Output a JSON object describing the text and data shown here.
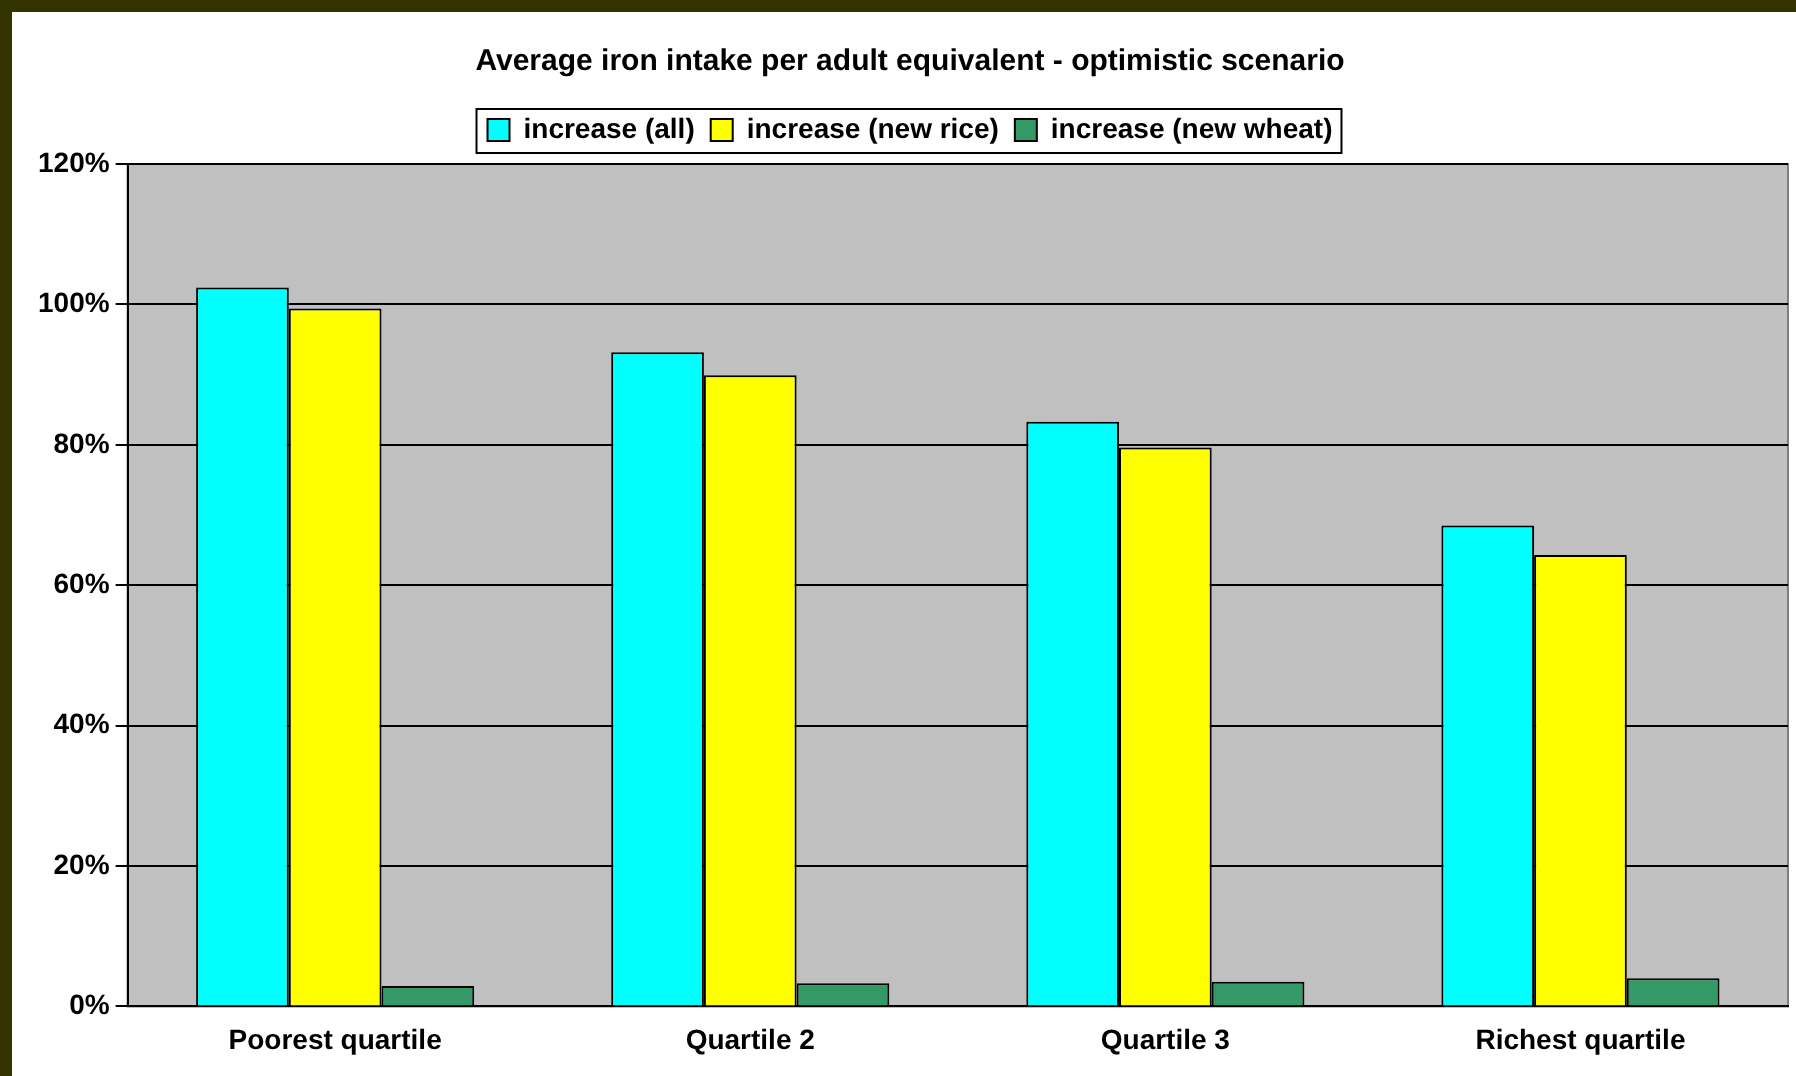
{
  "chart_data": {
    "type": "bar",
    "title": "Average iron intake per adult equivalent - optimistic scenario",
    "categories": [
      "Poorest quartile",
      "Quartile 2",
      "Quartile 3",
      "Richest quartile"
    ],
    "series": [
      {
        "name": "increase (all)",
        "color": "#00ffff",
        "values": [
          102.4,
          93.2,
          83.3,
          68.5
        ]
      },
      {
        "name": "increase (new rice)",
        "color": "#ffff00",
        "values": [
          99.4,
          89.9,
          79.6,
          64.3
        ]
      },
      {
        "name": "increase (new wheat)",
        "color": "#339966",
        "values": [
          2.9,
          3.3,
          3.5,
          4.0
        ]
      }
    ],
    "ylim": [
      0,
      120
    ],
    "yticks": [
      {
        "value": 0,
        "label": "0%"
      },
      {
        "value": 20,
        "label": "20%"
      },
      {
        "value": 40,
        "label": "40%"
      },
      {
        "value": 60,
        "label": "60%"
      },
      {
        "value": 80,
        "label": "80%"
      },
      {
        "value": 100,
        "label": "100%"
      },
      {
        "value": 120,
        "label": "120%"
      }
    ],
    "grid": "y",
    "legend": "top"
  }
}
